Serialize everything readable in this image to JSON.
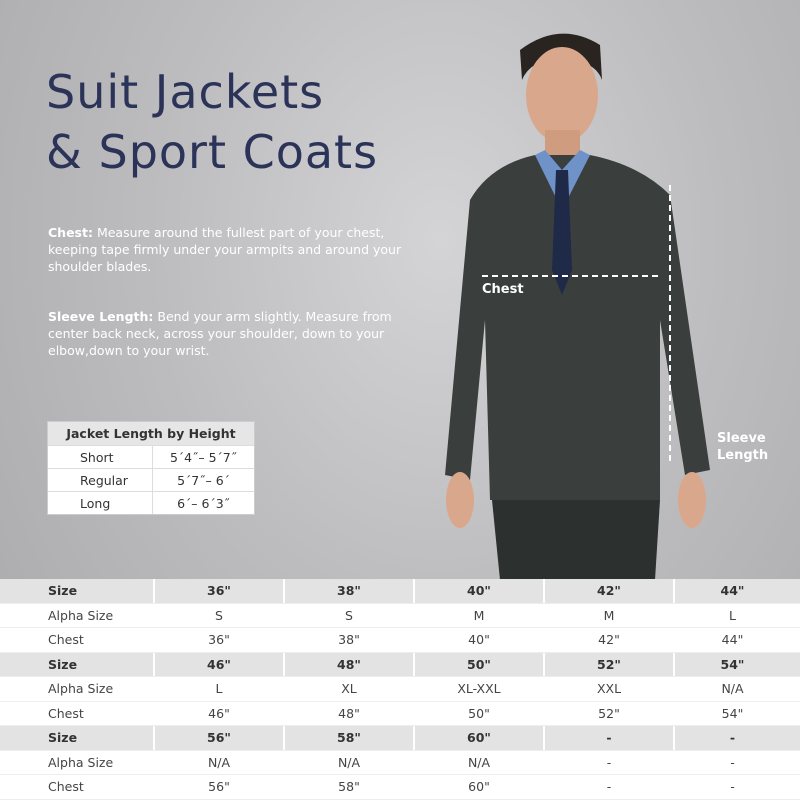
{
  "title_line1": "Suit Jackets",
  "title_line2": "& Sport Coats",
  "chest_label": "Chest:",
  "chest_text": " Measure around the fullest part of your chest, keeping tape firmly under your armpits and around your shoulder blades.",
  "sleeve_label": "Sleeve Length:",
  "sleeve_text": " Bend your arm slightly. Measure from center back neck, across your shoulder, down to your elbow,down to your wrist.",
  "jacket_length": {
    "header": "Jacket Length by Height",
    "rows": [
      [
        "Short",
        "5´4˝– 5´7˝"
      ],
      [
        "Regular",
        "5´7˝– 6´"
      ],
      [
        "Long",
        "6´– 6´3˝"
      ]
    ]
  },
  "image_labels": {
    "chest": "Chest",
    "sleeve": "Sleeve Length"
  },
  "size_table": [
    [
      "Size",
      "36\"",
      "38\"",
      "40\"",
      "42\"",
      "44\""
    ],
    [
      "Alpha Size",
      "S",
      "S",
      "M",
      "M",
      "L"
    ],
    [
      "Chest",
      "36\"",
      "38\"",
      "40\"",
      "42\"",
      "44\""
    ],
    [
      "Size",
      "46\"",
      "48\"",
      "50\"",
      "52\"",
      "54\""
    ],
    [
      "Alpha Size",
      "L",
      "XL",
      "XL-XXL",
      "XXL",
      "N/A"
    ],
    [
      "Chest",
      "46\"",
      "48\"",
      "50\"",
      "52\"",
      "54\""
    ],
    [
      "Size",
      "56\"",
      "58\"",
      "60\"",
      "-",
      "-"
    ],
    [
      "Alpha Size",
      "N/A",
      "N/A",
      "N/A",
      "-",
      "-"
    ],
    [
      "Chest",
      "56\"",
      "58\"",
      "60\"",
      "-",
      "-"
    ]
  ],
  "colors": {
    "title": "#2b3358",
    "header_row": "#e3e3e3"
  }
}
